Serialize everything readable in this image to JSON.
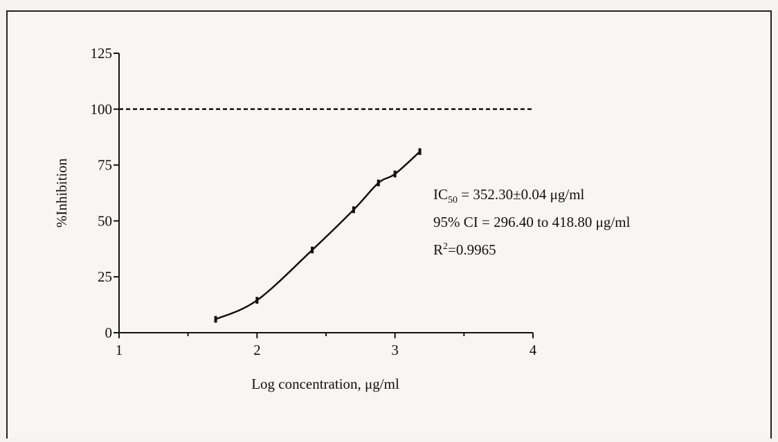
{
  "chart_data": {
    "type": "line",
    "x_label": "Log concentration, μg/ml",
    "y_label": "%Inhibition",
    "x": [
      1.7,
      2.0,
      2.4,
      2.7,
      2.88,
      3.0,
      3.18
    ],
    "series": [
      {
        "name": "%Inhibition",
        "color": "#111111",
        "values": [
          6,
          14.5,
          37,
          55,
          67,
          71,
          81
        ],
        "errors": [
          1.5,
          1.5,
          1.5,
          1.5,
          1.5,
          1.5,
          1.5
        ]
      }
    ],
    "xlim": [
      1,
      4
    ],
    "xticks": [
      1,
      2,
      3,
      4
    ],
    "xminor": [
      1.5,
      2.5,
      3.5
    ],
    "ylim": [
      0,
      125
    ],
    "yticks": [
      0,
      25,
      50,
      75,
      100,
      125
    ],
    "reference_line": 100,
    "annotations": [
      {
        "base": "IC",
        "sub": "50",
        "text": " = 352.30±0.04 μg/ml"
      },
      {
        "text": "95% CI = 296.40 to 418.80 μg/ml"
      },
      {
        "base": "R",
        "sup": "2",
        "text": "=0.9965"
      }
    ]
  }
}
